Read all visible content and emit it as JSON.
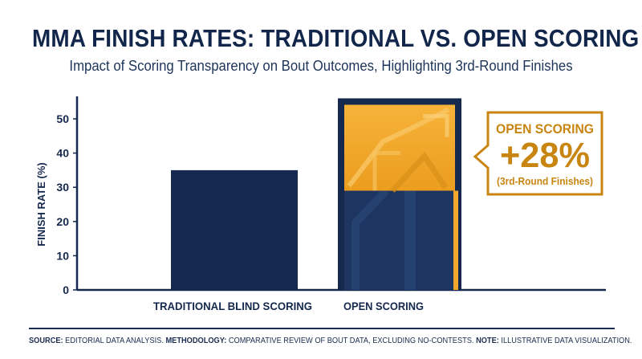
{
  "chart_data": {
    "type": "bar",
    "title": "MMA FINISH RATES: TRADITIONAL VS. OPEN SCORING",
    "subtitle": "Impact of Scoring Transparency on Bout Outcomes, Highlighting 3rd-Round Finishes",
    "ylabel": "FINISH RATE (%)",
    "ylim": [
      0,
      56
    ],
    "yticks": [
      0,
      10,
      20,
      30,
      40,
      50
    ],
    "categories": [
      "TRADITIONAL BLIND SCORING",
      "OPEN SCORING"
    ],
    "values": [
      35,
      56
    ],
    "highlight": {
      "category": "OPEN SCORING",
      "segment_from": 29,
      "segment_to": 56,
      "label": "3rd-Round Finishes"
    },
    "callout": {
      "line1": "OPEN SCORING",
      "line2": "+28%",
      "line3": "(3rd-Round Finishes)"
    },
    "colors": {
      "navy": "#15284d",
      "gold": "#f2a72d",
      "gold_dark": "#c88512"
    }
  },
  "footer": {
    "source_label": "SOURCE:",
    "source_text": " EDITORIAL DATA ANALYSIS. ",
    "methodology_label": "METHODOLOGY:",
    "methodology_text": " COMPARATIVE REVIEW OF BOUT DATA, EXCLUDING NO-CONTESTS. ",
    "note_label": "NOTE:",
    "note_text": " ILLUSTRATIVE DATA VISUALIZATION."
  }
}
